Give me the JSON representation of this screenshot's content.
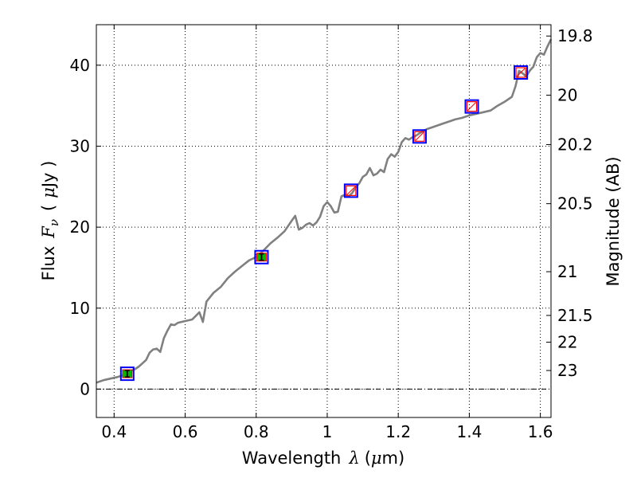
{
  "chart_data": {
    "type": "line",
    "xlabel_prefix": "Wavelength",
    "xlabel_symbol": "λ",
    "xlabel_unit_open": "(",
    "xlabel_unit_mu": "μ",
    "xlabel_unit_rest": "m)",
    "ylabel_prefix": "Flux",
    "ylabel_symbol": "F",
    "ylabel_subscript": "ν",
    "ylabel_unit_open": "(",
    "ylabel_unit_mu": "μ",
    "ylabel_unit_rest": "Jy )",
    "y2label": "Magnitude (AB)",
    "xlim": [
      0.35,
      1.63
    ],
    "ylim": [
      -3.5,
      45
    ],
    "grid": true,
    "x_ticks": [
      0.4,
      0.6,
      0.8,
      1.0,
      1.2,
      1.4,
      1.6
    ],
    "x_tick_labels": [
      "0.4",
      "0.6",
      "0.8",
      "1",
      "1.2",
      "1.4",
      "1.6"
    ],
    "y_ticks": [
      0,
      10,
      20,
      30,
      40
    ],
    "y_tick_labels": [
      "0",
      "10",
      "20",
      "30",
      "40"
    ],
    "y2_ticks": [
      {
        "label": "19.8",
        "flux": 43.6
      },
      {
        "label": "20",
        "flux": 36.3
      },
      {
        "label": "20.2",
        "flux": 30.2
      },
      {
        "label": "20.5",
        "flux": 22.9
      },
      {
        "label": "21",
        "flux": 14.5
      },
      {
        "label": "21.5",
        "flux": 9.1
      },
      {
        "label": "22",
        "flux": 5.8
      },
      {
        "label": "23",
        "flux": 2.3
      }
    ],
    "series": [
      {
        "name": "spectrum",
        "color": "#808080",
        "x": [
          0.35,
          0.37,
          0.39,
          0.41,
          0.43,
          0.44,
          0.45,
          0.46,
          0.47,
          0.48,
          0.49,
          0.5,
          0.51,
          0.52,
          0.53,
          0.54,
          0.55,
          0.56,
          0.57,
          0.58,
          0.6,
          0.62,
          0.64,
          0.65,
          0.66,
          0.68,
          0.7,
          0.72,
          0.74,
          0.76,
          0.78,
          0.8,
          0.82,
          0.84,
          0.86,
          0.88,
          0.9,
          0.91,
          0.92,
          0.93,
          0.94,
          0.95,
          0.96,
          0.97,
          0.98,
          0.99,
          1.0,
          1.01,
          1.02,
          1.03,
          1.04,
          1.05,
          1.06,
          1.07,
          1.08,
          1.09,
          1.1,
          1.11,
          1.12,
          1.13,
          1.14,
          1.15,
          1.16,
          1.17,
          1.18,
          1.19,
          1.2,
          1.21,
          1.22,
          1.23,
          1.24,
          1.25,
          1.26,
          1.28,
          1.3,
          1.32,
          1.34,
          1.36,
          1.38,
          1.4,
          1.42,
          1.44,
          1.46,
          1.48,
          1.5,
          1.52,
          1.53,
          1.54,
          1.55,
          1.56,
          1.57,
          1.58,
          1.59,
          1.6,
          1.61,
          1.62,
          1.63
        ],
        "y": [
          0.8,
          1.1,
          1.3,
          1.5,
          1.8,
          2.1,
          2.3,
          2.5,
          2.8,
          3.2,
          3.6,
          4.5,
          4.9,
          5.0,
          4.6,
          6.3,
          7.2,
          8.0,
          7.9,
          8.2,
          8.4,
          8.6,
          9.5,
          8.3,
          10.8,
          11.9,
          12.6,
          13.7,
          14.5,
          15.2,
          15.9,
          16.3,
          17.1,
          18.0,
          18.7,
          19.5,
          20.8,
          21.4,
          19.7,
          19.9,
          20.3,
          20.5,
          20.2,
          20.6,
          21.3,
          22.6,
          23.1,
          22.6,
          21.8,
          21.9,
          23.8,
          24.0,
          23.8,
          24.2,
          24.9,
          25.4,
          26.2,
          26.5,
          27.3,
          26.4,
          26.6,
          27.1,
          26.8,
          28.4,
          29.0,
          28.7,
          29.3,
          30.5,
          31.0,
          30.8,
          31.1,
          31.3,
          31.6,
          32.1,
          32.4,
          32.7,
          33.0,
          33.3,
          33.5,
          33.8,
          34.0,
          34.2,
          34.4,
          35.0,
          35.5,
          36.1,
          37.4,
          39.3,
          39.0,
          38.6,
          39.3,
          39.8,
          41.0,
          41.5,
          41.3,
          42.3,
          43.2
        ]
      }
    ],
    "photometry": [
      {
        "x": 0.437,
        "y": 1.9,
        "fill": "#00bb00",
        "marker": "filled-band"
      },
      {
        "x": 0.815,
        "y": 16.3,
        "fill": "#00bb00",
        "marker": "filled-band"
      },
      {
        "x": 1.067,
        "y": 24.5,
        "fill": "none",
        "marker": "open"
      },
      {
        "x": 1.26,
        "y": 31.2,
        "fill": "none",
        "marker": "open"
      },
      {
        "x": 1.407,
        "y": 34.9,
        "fill": "none",
        "marker": "open"
      },
      {
        "x": 1.545,
        "y": 39.1,
        "fill": "none",
        "marker": "open"
      }
    ],
    "colors": {
      "axis": "#000000",
      "grid": "#000000",
      "spectrum": "#808080",
      "marker_box": "#0000ff",
      "marker_inner": "#ff0000",
      "marker_fill": "#00bb00"
    }
  }
}
